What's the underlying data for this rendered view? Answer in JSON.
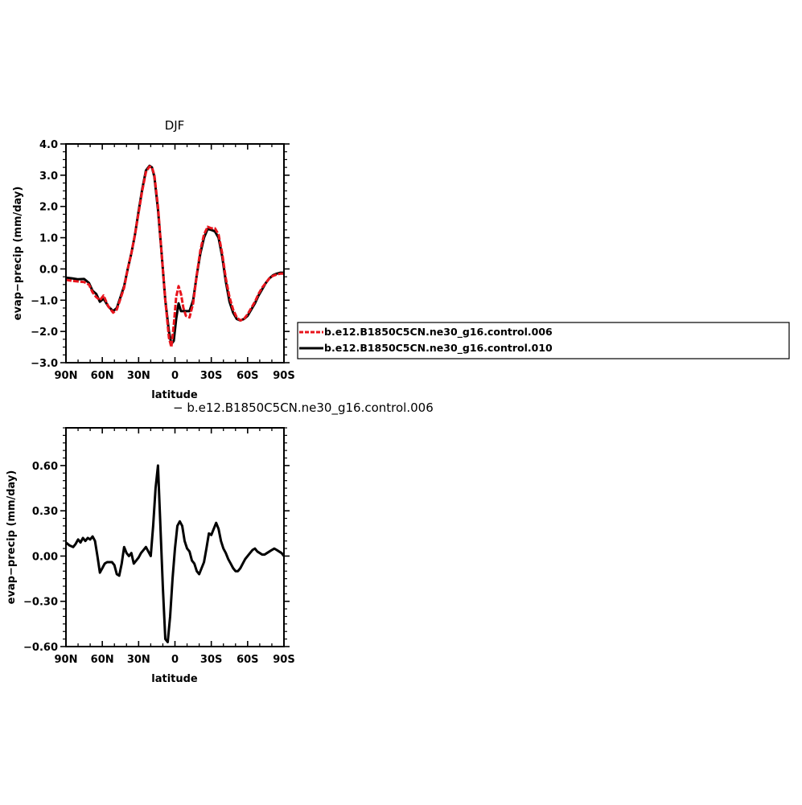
{
  "chart_data": [
    {
      "type": "line",
      "title": "DJF",
      "xlabel": "latitude",
      "ylabel": "evap−precip (mm/day)",
      "xlim": [
        90,
        -90
      ],
      "ylim": [
        -3.0,
        4.0
      ],
      "xticks": [
        90,
        60,
        30,
        0,
        -30,
        -60,
        -90
      ],
      "xtick_labels": [
        "90N",
        "60N",
        "30N",
        "0",
        "30S",
        "60S",
        "90S"
      ],
      "yticks": [
        -3.0,
        -2.0,
        -1.0,
        0.0,
        1.0,
        2.0,
        3.0,
        4.0
      ],
      "ytick_labels": [
        "−3.0",
        "−2.0",
        "−1.0",
        "0.0",
        "1.0",
        "2.0",
        "3.0",
        "4.0"
      ],
      "legend_position": "right",
      "series": [
        {
          "name": "b.e12.B1850C5CN.ne30_g16.control.006",
          "color": "#e8141c",
          "dashed": true,
          "x": [
            90,
            85,
            80,
            75,
            71,
            68,
            65,
            62,
            59,
            55,
            51,
            48,
            45,
            42,
            39,
            36,
            33,
            30,
            27,
            24,
            21,
            19,
            17,
            14,
            11,
            8,
            5,
            3,
            1,
            -1,
            -3,
            -5,
            -7,
            -9,
            -12,
            -15,
            -18,
            -21,
            -24,
            -27,
            -30,
            -33,
            -36,
            -39,
            -42,
            -45,
            -48,
            -51,
            -54,
            -57,
            -60,
            -63,
            -66,
            -69,
            -72,
            -75,
            -78,
            -81,
            -84,
            -87,
            -90
          ],
          "y": [
            -0.35,
            -0.38,
            -0.4,
            -0.42,
            -0.5,
            -0.75,
            -0.9,
            -1.0,
            -0.85,
            -1.2,
            -1.4,
            -1.3,
            -0.95,
            -0.6,
            0.0,
            0.5,
            1.1,
            1.8,
            2.5,
            3.1,
            3.28,
            3.25,
            3.0,
            2.0,
            0.5,
            -1.0,
            -2.2,
            -2.5,
            -1.8,
            -0.9,
            -0.55,
            -0.8,
            -1.25,
            -1.5,
            -1.55,
            -1.1,
            -0.2,
            0.6,
            1.1,
            1.35,
            1.3,
            1.3,
            1.1,
            0.5,
            -0.3,
            -0.9,
            -1.3,
            -1.55,
            -1.65,
            -1.6,
            -1.45,
            -1.25,
            -1.05,
            -0.8,
            -0.6,
            -0.45,
            -0.3,
            -0.22,
            -0.18,
            -0.15,
            -0.15
          ]
        },
        {
          "name": "b.e12.B1850C5CN.ne30_g16.control.010",
          "color": "#000000",
          "dashed": false,
          "x": [
            90,
            85,
            80,
            75,
            71,
            68,
            65,
            62,
            59,
            55,
            51,
            48,
            45,
            42,
            39,
            36,
            33,
            30,
            27,
            24,
            21,
            19,
            17,
            14,
            11,
            8,
            5,
            3,
            1,
            -1,
            -3,
            -5,
            -7,
            -9,
            -12,
            -15,
            -18,
            -21,
            -24,
            -27,
            -30,
            -33,
            -36,
            -39,
            -42,
            -45,
            -48,
            -51,
            -54,
            -57,
            -60,
            -63,
            -66,
            -69,
            -72,
            -75,
            -78,
            -81,
            -84,
            -87,
            -90
          ],
          "y": [
            -0.28,
            -0.3,
            -0.33,
            -0.32,
            -0.45,
            -0.7,
            -0.8,
            -1.05,
            -0.95,
            -1.2,
            -1.35,
            -1.25,
            -0.9,
            -0.55,
            0.0,
            0.5,
            1.1,
            1.85,
            2.55,
            3.15,
            3.3,
            3.25,
            2.95,
            1.9,
            0.5,
            -1.0,
            -2.0,
            -2.4,
            -2.3,
            -1.6,
            -1.1,
            -1.35,
            -1.35,
            -1.35,
            -1.35,
            -1.0,
            -0.2,
            0.5,
            1.0,
            1.28,
            1.25,
            1.2,
            1.0,
            0.4,
            -0.4,
            -1.05,
            -1.4,
            -1.6,
            -1.65,
            -1.6,
            -1.5,
            -1.3,
            -1.1,
            -0.85,
            -0.65,
            -0.45,
            -0.3,
            -0.2,
            -0.15,
            -0.12,
            -0.12
          ]
        }
      ]
    },
    {
      "type": "line",
      "title": "− b.e12.B1850C5CN.ne30_g16.control.006",
      "xlabel": "latitude",
      "ylabel": "evap−precip (mm/day)",
      "xlim": [
        90,
        -90
      ],
      "ylim": [
        -0.6,
        0.85
      ],
      "xticks": [
        90,
        60,
        30,
        0,
        -30,
        -60,
        -90
      ],
      "xtick_labels": [
        "90N",
        "60N",
        "30N",
        "0",
        "30S",
        "60S",
        "90S"
      ],
      "yticks": [
        -0.6,
        -0.3,
        0.0,
        0.3,
        0.6
      ],
      "ytick_labels": [
        "−0.60",
        "−0.30",
        "0.00",
        "0.30",
        "0.60"
      ],
      "series": [
        {
          "color": "#000000",
          "x": [
            90,
            87,
            84,
            82,
            80,
            78,
            76,
            74,
            72,
            70,
            68,
            66,
            64,
            62,
            60,
            58,
            56,
            54,
            52,
            50,
            48,
            46,
            44,
            42,
            40,
            38,
            36,
            34,
            32,
            30,
            28,
            26,
            24,
            22,
            20,
            18,
            16,
            14,
            12,
            10,
            8,
            6,
            4,
            2,
            0,
            -2,
            -4,
            -6,
            -8,
            -10,
            -12,
            -14,
            -16,
            -18,
            -20,
            -22,
            -24,
            -26,
            -28,
            -30,
            -32,
            -34,
            -36,
            -38,
            -40,
            -42,
            -44,
            -46,
            -48,
            -50,
            -52,
            -54,
            -56,
            -58,
            -60,
            -62,
            -64,
            -66,
            -68,
            -70,
            -72,
            -74,
            -76,
            -78,
            -80,
            -82,
            -84,
            -86,
            -88,
            -90
          ],
          "y": [
            0.09,
            0.07,
            0.06,
            0.08,
            0.11,
            0.09,
            0.12,
            0.1,
            0.12,
            0.11,
            0.13,
            0.1,
            0.0,
            -0.11,
            -0.08,
            -0.05,
            -0.04,
            -0.04,
            -0.04,
            -0.06,
            -0.12,
            -0.13,
            -0.05,
            0.06,
            0.02,
            0.0,
            0.02,
            -0.05,
            -0.03,
            -0.01,
            0.02,
            0.04,
            0.06,
            0.03,
            0.0,
            0.2,
            0.45,
            0.6,
            0.2,
            -0.2,
            -0.55,
            -0.57,
            -0.4,
            -0.15,
            0.05,
            0.2,
            0.23,
            0.2,
            0.1,
            0.05,
            0.03,
            -0.03,
            -0.05,
            -0.1,
            -0.12,
            -0.08,
            -0.04,
            0.05,
            0.15,
            0.14,
            0.18,
            0.22,
            0.18,
            0.1,
            0.05,
            0.02,
            -0.02,
            -0.05,
            -0.08,
            -0.1,
            -0.1,
            -0.08,
            -0.05,
            -0.02,
            0.0,
            0.02,
            0.04,
            0.05,
            0.03,
            0.02,
            0.01,
            0.01,
            0.02,
            0.03,
            0.04,
            0.05,
            0.04,
            0.03,
            0.02,
            0.0
          ]
        }
      ]
    }
  ]
}
